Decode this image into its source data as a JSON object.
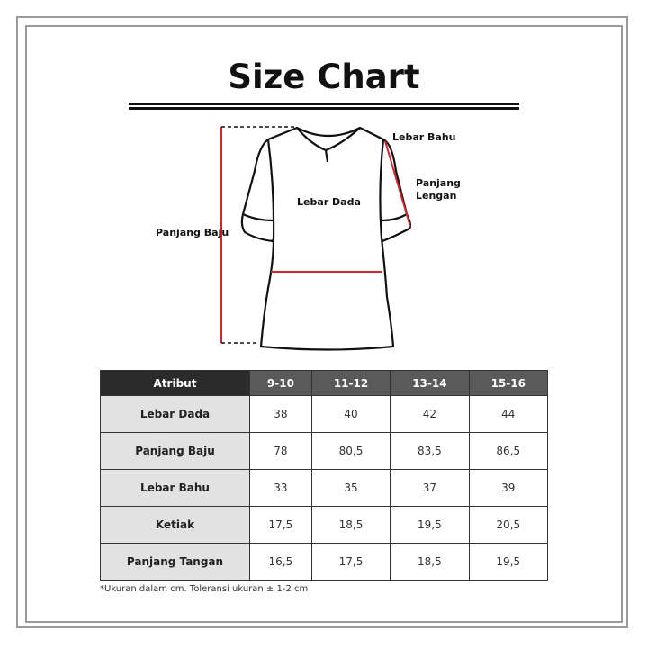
{
  "title": "Size Chart",
  "diagram": {
    "labels": {
      "shoulder": "Lebar Bahu",
      "chest": "Lebar Dada",
      "length": "Panjang Baju",
      "sleeve_line1": "Panjang",
      "sleeve_line2": "Lengan"
    },
    "measure_color": "#d9232e"
  },
  "table": {
    "headers": [
      "Atribut",
      "9-10",
      "11-12",
      "13-14",
      "15-16"
    ],
    "rows": [
      {
        "label": "Lebar Dada",
        "values": [
          "38",
          "40",
          "42",
          "44"
        ]
      },
      {
        "label": "Panjang Baju",
        "values": [
          "78",
          "80,5",
          "83,5",
          "86,5"
        ]
      },
      {
        "label": "Lebar Bahu",
        "values": [
          "33",
          "35",
          "37",
          "39"
        ]
      },
      {
        "label": "Ketiak",
        "values": [
          "17,5",
          "18,5",
          "19,5",
          "20,5"
        ]
      },
      {
        "label": "Panjang Tangan",
        "values": [
          "16,5",
          "17,5",
          "18,5",
          "19,5"
        ]
      }
    ]
  },
  "note": "*Ukuran dalam cm. Toleransi ukuran ± 1-2 cm"
}
